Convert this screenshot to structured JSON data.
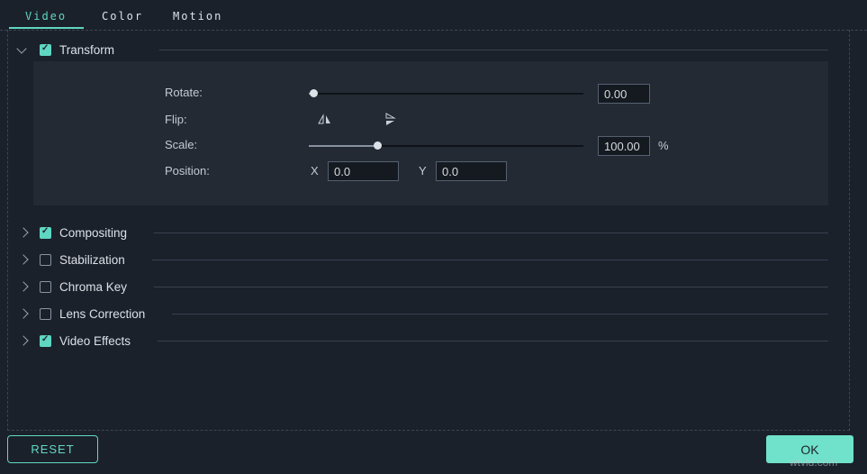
{
  "tabs": [
    {
      "label": "Video",
      "active": true
    },
    {
      "label": "Color",
      "active": false
    },
    {
      "label": "Motion",
      "active": false
    }
  ],
  "transform": {
    "label": "Transform",
    "checked": true,
    "rows": {
      "rotate": {
        "label": "Rotate:",
        "value": "0.00"
      },
      "flip": {
        "label": "Flip:"
      },
      "scale": {
        "label": "Scale:",
        "value": "100.00",
        "unit": "%"
      },
      "position": {
        "label": "Position:",
        "x_label": "X",
        "x_value": "0.0",
        "y_label": "Y",
        "y_value": "0.0"
      }
    }
  },
  "sections": [
    {
      "label": "Compositing",
      "checked": true
    },
    {
      "label": "Stabilization",
      "checked": false
    },
    {
      "label": "Chroma Key",
      "checked": false
    },
    {
      "label": "Lens Correction",
      "checked": false
    },
    {
      "label": "Video Effects",
      "checked": true
    }
  ],
  "sliders": {
    "rotate": 1.5,
    "scale": 25
  },
  "footer": {
    "reset": "RESET",
    "ok": "OK"
  },
  "watermark": "wtvid.com",
  "icons": {
    "transform_chevron": "chevron-down",
    "section_chevron": "chevron-right",
    "flip_horizontal": "flip-horizontal-icon",
    "flip_vertical": "flip-vertical-icon"
  },
  "colors": {
    "accent": "#5fd6c2",
    "ok_button_fill": "#70e1ca",
    "panel_background": "#242a33",
    "background": "#1b212b"
  }
}
